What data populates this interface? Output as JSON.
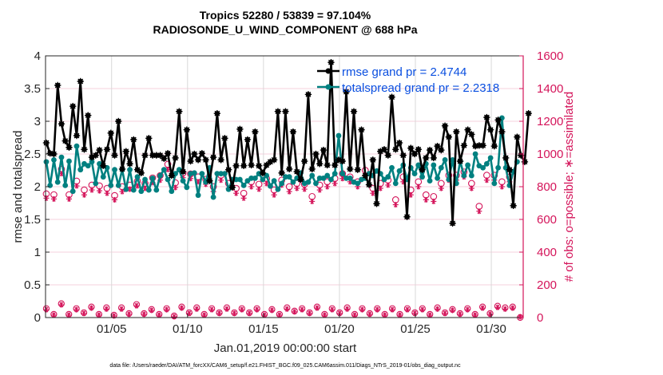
{
  "chart_data": {
    "type": "line",
    "title": "Tropics 52280 / 53839 = 97.104%",
    "subtitle": "RADIOSONDE_U_WIND_COMPONENT @ 688 hPa",
    "xlabel": "Jan.01,2019 00:00:00 start",
    "ylabel": "rmse and totalspread",
    "ylabel_right": "# of obs: o=possible; ∗=assimilated",
    "footnote": "data file: /Users/raeder/DAI/ATM_forcXX/CAM6_setup/f.e21.FHIST_BGC.f09_025.CAM6assim.011/Diags_NTrS_2019-01/obs_diag_output.nc",
    "xlim_days": [
      0.65,
      32.1
    ],
    "x_start_day": 0.7,
    "x_step_days": 0.25,
    "x_ticks": [
      5,
      10,
      15,
      20,
      25,
      30
    ],
    "x_tick_labels": [
      "01/05",
      "01/10",
      "01/15",
      "01/20",
      "01/25",
      "01/30"
    ],
    "ylim": [
      0,
      4
    ],
    "y_ticks": [
      0,
      0.5,
      1,
      1.5,
      2,
      2.5,
      3,
      3.5,
      4
    ],
    "y_tick_labels": [
      "0",
      "0.5",
      "1",
      "1.5",
      "2",
      "2.5",
      "3",
      "3.5",
      "4"
    ],
    "ylim_right": [
      0,
      1600
    ],
    "y_ticks_right": [
      0,
      200,
      400,
      600,
      800,
      1000,
      1200,
      1400,
      1600
    ],
    "y_tick_labels_right": [
      "0",
      "200",
      "400",
      "600",
      "800",
      "1000",
      "1200",
      "1400",
      "1600"
    ],
    "grid": "on",
    "legend_position": "top-right",
    "colors": {
      "rmse": "#000000",
      "totalspread": "#008080",
      "obs": "#d4145a",
      "legend_text": "#0a4fe0",
      "grid_v": "#d9d9d9",
      "grid_h": "#f5d0dc"
    },
    "series": [
      {
        "name": "rmse grand pr = 2.4744",
        "key": "rmse",
        "values": [
          2.67,
          2.51,
          2.5,
          3.55,
          2.96,
          2.7,
          2.6,
          3.23,
          2.78,
          3.61,
          2.57,
          3.09,
          2.45,
          2.48,
          2.56,
          2.32,
          2.57,
          2.82,
          2.48,
          3.0,
          2.27,
          2.54,
          2.35,
          2.72,
          2.26,
          2.21,
          2.48,
          2.74,
          2.48,
          2.48,
          2.48,
          2.43,
          2.51,
          2.17,
          2.44,
          3.15,
          2.23,
          2.87,
          2.39,
          2.5,
          2.41,
          2.51,
          2.41,
          2.09,
          2.45,
          3.12,
          2.41,
          2.74,
          2.26,
          1.99,
          2.32,
          2.88,
          2.32,
          2.72,
          2.33,
          2.84,
          2.32,
          2.21,
          2.33,
          2.38,
          2.41,
          3.15,
          2.21,
          3.15,
          2.27,
          2.84,
          2.23,
          2.11,
          2.39,
          3.41,
          2.27,
          2.5,
          2.35,
          2.56,
          2.33,
          3.9,
          2.33,
          2.41,
          2.39,
          3.45,
          2.27,
          3.15,
          2.26,
          2.87,
          2.17,
          2.03,
          2.41,
          1.74,
          2.54,
          2.57,
          2.48,
          3.37,
          2.57,
          2.67,
          2.48,
          1.54,
          2.59,
          2.5,
          2.57,
          2.26,
          2.44,
          2.56,
          2.44,
          2.62,
          2.56,
          2.93,
          2.76,
          1.44,
          2.84,
          2.39,
          2.63,
          2.87,
          2.8,
          2.62,
          2.63,
          2.63,
          3.06,
          2.87,
          2.62,
          3.02,
          2.84,
          2.44,
          2.26,
          1.71,
          2.76,
          2.48,
          2.38,
          3.12
        ]
      },
      {
        "name": "totalspread grand pr = 2.2318",
        "key": "totalspread",
        "values": [
          2.38,
          2.02,
          2.41,
          2.07,
          2.45,
          2.02,
          2.39,
          1.93,
          2.62,
          2.26,
          2.35,
          2.32,
          2.38,
          2.05,
          2.35,
          2.15,
          2.29,
          2.02,
          2.26,
          2.02,
          2.26,
          1.96,
          2.26,
          1.95,
          2.15,
          1.93,
          2.11,
          1.95,
          2.13,
          1.95,
          2.17,
          2.26,
          2.11,
          1.93,
          2.2,
          2.26,
          2.09,
          1.99,
          2.2,
          2.21,
          1.87,
          2.2,
          2.07,
          2.29,
          1.84,
          2.2,
          2.2,
          2.2,
          1.96,
          2.11,
          2.11,
          2.11,
          2.02,
          2.09,
          2.13,
          2.13,
          2.2,
          2.11,
          2.17,
          2.01,
          2.09,
          1.96,
          2.05,
          2.15,
          2.15,
          2.07,
          2.13,
          2.21,
          2.05,
          2.07,
          2.17,
          2.05,
          2.13,
          2.13,
          2.17,
          2.11,
          2.2,
          2.78,
          2.2,
          2.13,
          2.13,
          2.07,
          2.05,
          2.11,
          2.13,
          2.2,
          2.17,
          2.24,
          2.2,
          2.11,
          2.15,
          2.29,
          2.05,
          2.24,
          2.33,
          2.11,
          2.29,
          2.2,
          2.33,
          2.15,
          2.35,
          2.09,
          2.33,
          2.13,
          2.29,
          2.41,
          2.11,
          2.41,
          2.05,
          2.39,
          2.17,
          2.33,
          2.17,
          2.5,
          2.32,
          2.29,
          2.35,
          2.44,
          2.05,
          2.29,
          3.05,
          2.29,
          2.02,
          2.23,
          2.38
        ]
      },
      {
        "name": "obs possible (upper, right axis)",
        "key": "obs_possible",
        "axis": "right",
        "values": [
          756,
          751,
          907,
          751,
          834,
          780,
          810,
          805,
          790,
          746,
          800,
          810,
          834,
          820,
          854,
          868,
          937,
          824,
          883,
          878,
          860,
          845,
          800,
          870,
          820,
          790,
          760,
          830,
          815,
          850,
          780,
          840,
          800,
          820,
          815,
          740,
          810,
          830,
          850,
          880,
          860,
          830,
          900,
          790,
          820,
          840,
          720,
          860,
          780,
          830,
          750,
          740,
          820,
          870,
          870,
          890,
          820,
          680,
          870,
          870,
          830,
          860
        ]
      },
      {
        "name": "obs assimilated (upper, right axis)",
        "key": "obs_assimilated",
        "axis": "right",
        "values": [
          730,
          725,
          880,
          725,
          805,
          750,
          780,
          775,
          760,
          720,
          770,
          785,
          805,
          790,
          825,
          840,
          905,
          795,
          855,
          850,
          830,
          815,
          770,
          840,
          790,
          760,
          730,
          800,
          785,
          820,
          750,
          810,
          770,
          790,
          785,
          710,
          780,
          800,
          820,
          850,
          830,
          800,
          870,
          760,
          790,
          810,
          690,
          830,
          750,
          800,
          720,
          710,
          790,
          840,
          840,
          860,
          790,
          650,
          840,
          840,
          800,
          830
        ]
      },
      {
        "name": "obs possible (lower, right axis)",
        "key": "obs_possible_low",
        "axis": "right",
        "values": [
          55,
          20,
          85,
          20,
          55,
          30,
          65,
          20,
          60,
          15,
          60,
          25,
          80,
          25,
          50,
          20,
          55,
          10,
          65,
          30,
          60,
          20,
          55,
          30,
          60,
          30,
          55,
          30,
          55,
          20,
          50,
          20,
          60,
          40,
          55,
          30,
          65,
          20,
          55,
          30,
          60,
          20,
          55,
          25,
          55,
          20,
          55,
          20,
          55,
          30,
          55,
          20,
          60,
          30,
          50,
          25,
          55,
          20,
          65,
          25,
          70,
          60,
          65,
          0
        ]
      },
      {
        "name": "obs assimilated (lower, right axis)",
        "key": "obs_assimilated_low",
        "axis": "right",
        "values": [
          48,
          15,
          78,
          15,
          48,
          25,
          58,
          15,
          52,
          10,
          52,
          20,
          72,
          20,
          44,
          15,
          48,
          5,
          58,
          25,
          52,
          15,
          48,
          25,
          52,
          25,
          48,
          25,
          48,
          15,
          44,
          15,
          52,
          35,
          48,
          25,
          58,
          15,
          48,
          25,
          52,
          15,
          48,
          20,
          48,
          15,
          48,
          15,
          48,
          25,
          48,
          15,
          52,
          25,
          44,
          20,
          48,
          15,
          58,
          20,
          62,
          52,
          58,
          5
        ]
      }
    ]
  }
}
